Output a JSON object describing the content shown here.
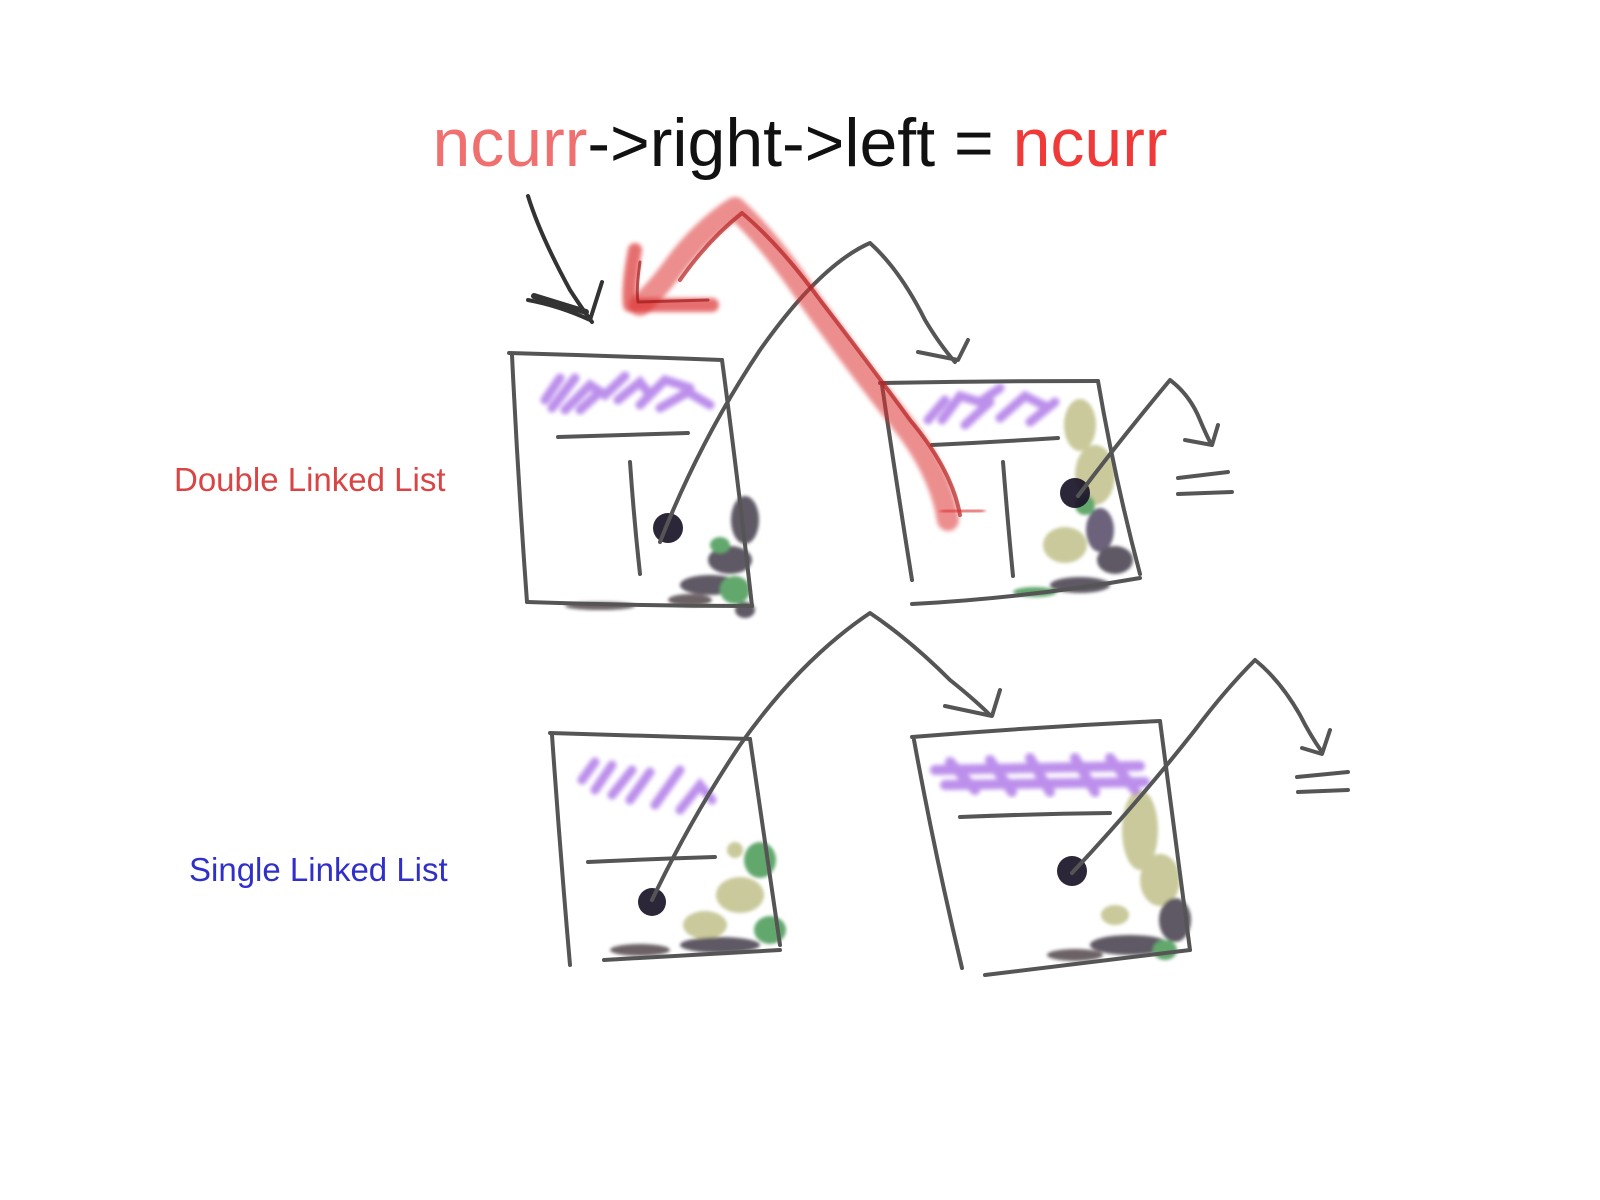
{
  "equation": {
    "lhs_var": "ncurr",
    "lhs_rest": "->right->left = ",
    "rhs_var": "ncurr"
  },
  "labels": {
    "double": "Double Linked List",
    "single": "Single Linked List"
  },
  "colors": {
    "lhs_var": "#f07070",
    "rhs_var": "#f03a3a",
    "operator_text": "#111111",
    "double_label": "#d94545",
    "single_label": "#3030c8",
    "stroke": "#555555",
    "highlight_red": "#dd3333",
    "data_purple": "#b07ce8",
    "fill_olive": "#b8b87a",
    "fill_green": "#2e8b3e",
    "fill_dark": "#2a2230"
  }
}
